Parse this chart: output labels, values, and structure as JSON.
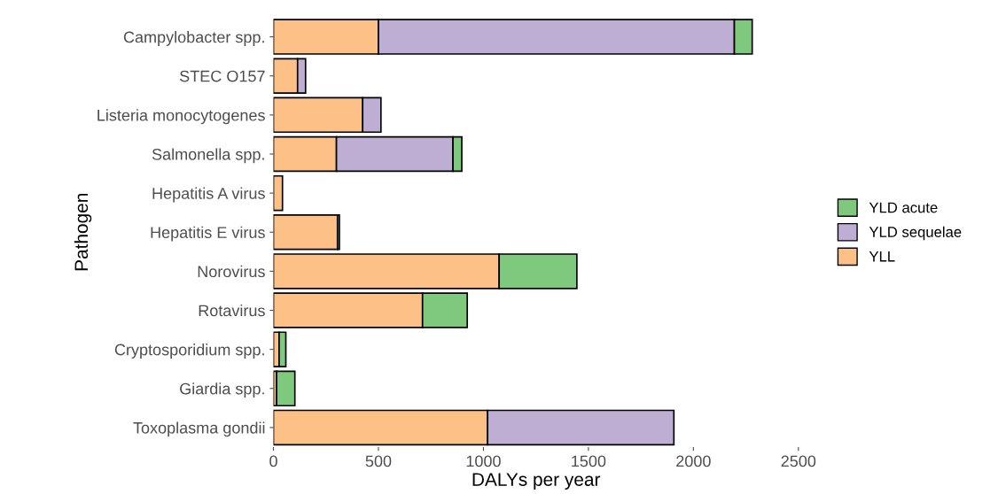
{
  "chart_data": {
    "type": "bar",
    "orientation": "horizontal",
    "stacked": true,
    "xlabel": "DALYs per year",
    "ylabel": "Pathogen",
    "categories": [
      "Campylobacter spp.",
      "STEC O157",
      "Listeria monocytogenes",
      "Salmonella spp.",
      "Hepatitis A virus",
      "Hepatitis E virus",
      "Norovirus",
      "Rotavirus",
      "Cryptosporidium spp.",
      "Giardia spp.",
      "Toxoplasma gondii"
    ],
    "series": [
      {
        "name": "YLL",
        "color": "#fdc086",
        "values": [
          500,
          115,
          425,
          300,
          43,
          305,
          1075,
          710,
          27,
          15,
          1020
        ]
      },
      {
        "name": "YLD sequelae",
        "color": "#beaed4",
        "values": [
          1695,
          38,
          87,
          555,
          null,
          null,
          null,
          null,
          null,
          null,
          887
        ]
      },
      {
        "name": "YLD acute",
        "color": "#7fc97f",
        "values": [
          85,
          null,
          null,
          42,
          null,
          9,
          370,
          213,
          32,
          87,
          null
        ]
      }
    ],
    "xlim": [
      0,
      2500
    ],
    "xticks": [
      0,
      500,
      1000,
      1500,
      2000,
      2500
    ],
    "grid": false,
    "legend": "right"
  }
}
